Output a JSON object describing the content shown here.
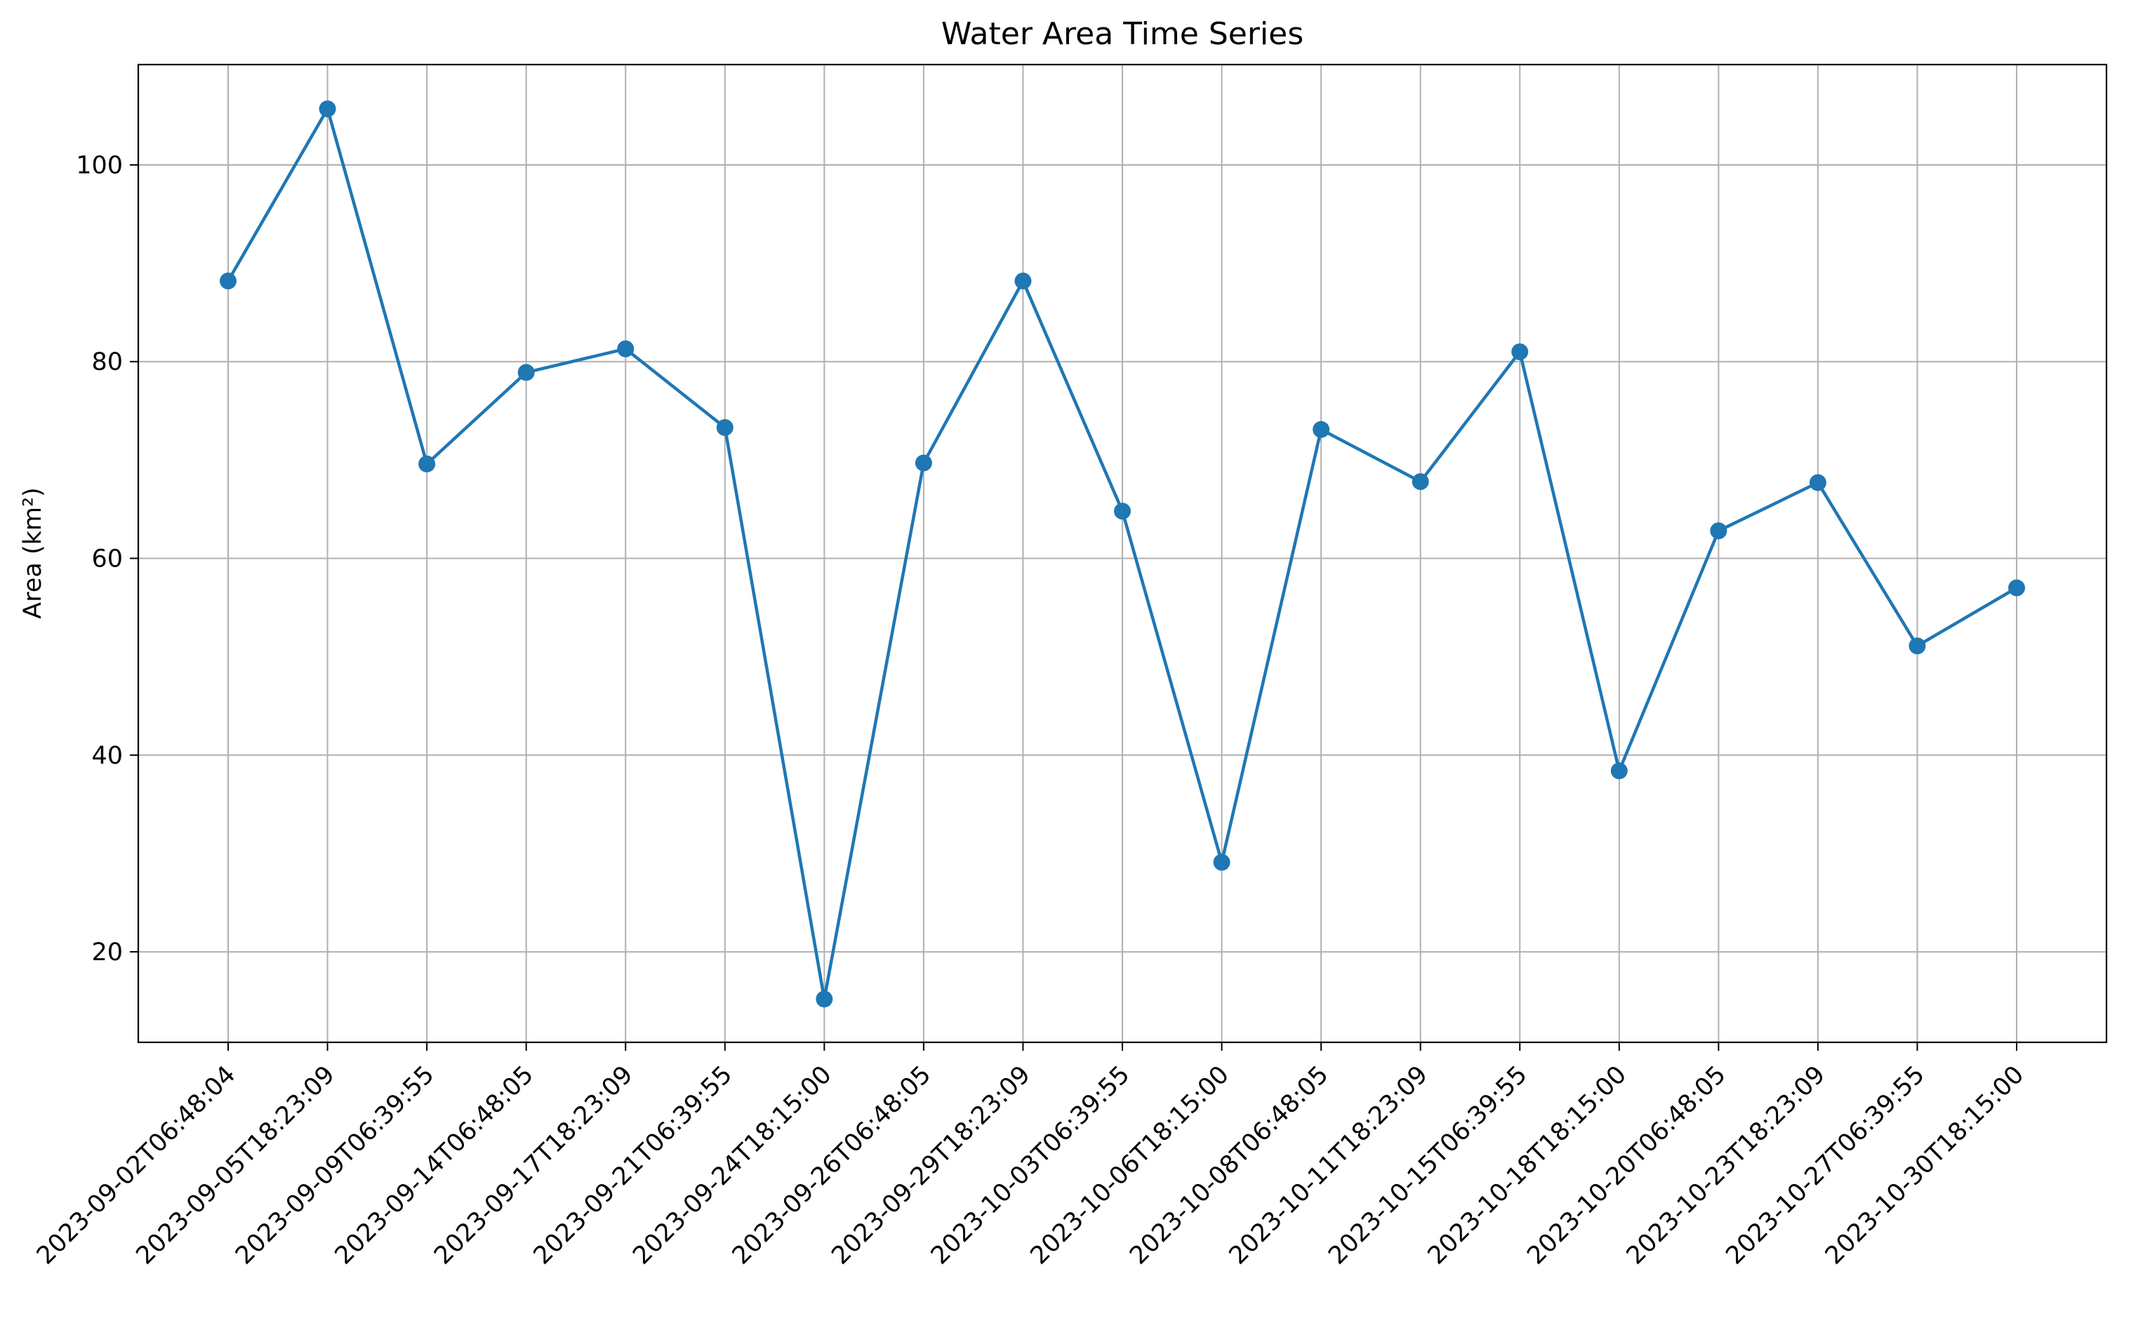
{
  "chart_data": {
    "type": "line",
    "title": "Water Area Time Series",
    "xlabel": "",
    "ylabel": "Area (km²)",
    "x": [
      "2023-09-02T06:48:04",
      "2023-09-05T18:23:09",
      "2023-09-09T06:39:55",
      "2023-09-14T06:48:05",
      "2023-09-17T18:23:09",
      "2023-09-21T06:39:55",
      "2023-09-24T18:15:00",
      "2023-09-26T06:48:05",
      "2023-09-29T18:23:09",
      "2023-10-03T06:39:55",
      "2023-10-06T18:15:00",
      "2023-10-08T06:48:05",
      "2023-10-11T18:23:09",
      "2023-10-15T06:39:55",
      "2023-10-18T18:15:00",
      "2023-10-20T06:48:05",
      "2023-10-23T18:23:09",
      "2023-10-27T06:39:55",
      "2023-10-30T18:15:00"
    ],
    "series": [
      {
        "name": "",
        "color": "#1f77b4",
        "values": [
          88.2,
          105.7,
          69.6,
          78.9,
          81.3,
          73.3,
          15.2,
          69.7,
          88.2,
          64.8,
          29.1,
          73.1,
          67.8,
          81.0,
          38.4,
          62.8,
          67.7,
          51.1,
          57.0
        ]
      }
    ],
    "ylim": [
      10.8,
      110.2
    ],
    "yticks": [
      20,
      40,
      60,
      80,
      100
    ],
    "grid": true,
    "legend": "none"
  }
}
